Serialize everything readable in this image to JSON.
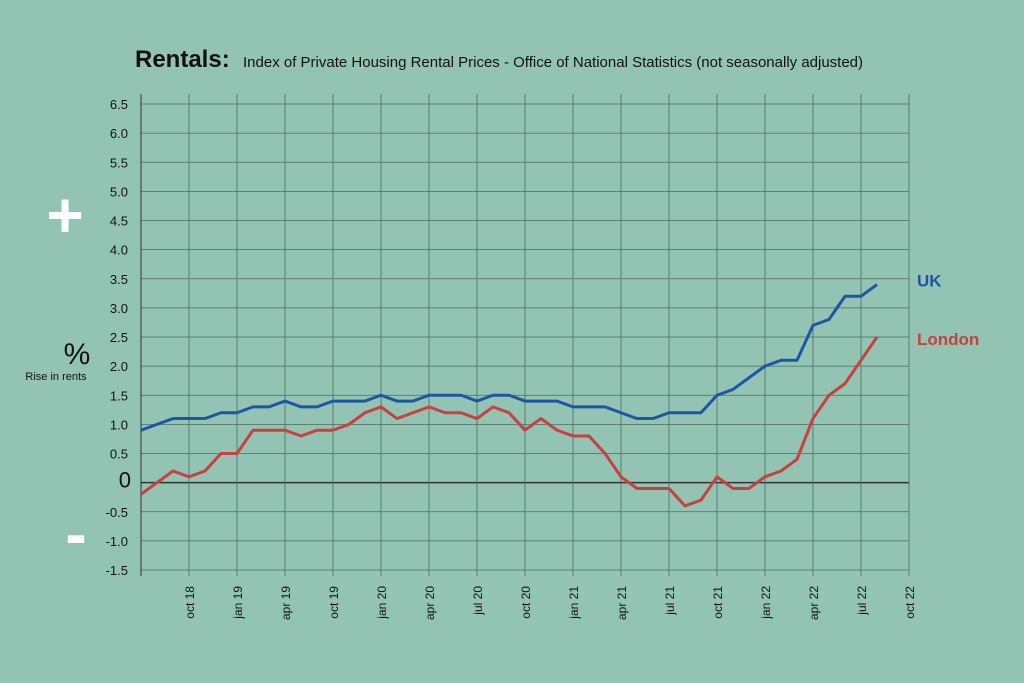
{
  "chart_data": {
    "type": "line",
    "title": "Rentals:",
    "subtitle": "Index of Private Housing Rental Prices - Office of National Statistics (not seasonally adjusted)",
    "y_label": "%",
    "y_sublabel": "Rise in rents",
    "plus_sign": "+",
    "minus_sign": "-",
    "x": [
      0,
      1,
      2,
      3,
      4,
      5,
      6,
      7,
      8,
      9,
      10,
      11,
      12,
      13,
      14,
      15,
      16,
      17,
      18,
      19,
      20,
      21,
      22,
      23,
      24,
      25,
      26,
      27,
      28,
      29,
      30,
      31,
      32,
      33,
      34,
      35,
      36,
      37,
      38,
      39,
      40,
      41,
      42,
      43,
      44,
      45,
      46
    ],
    "xlim": [
      0,
      48
    ],
    "xticks": [
      {
        "value": 3,
        "label": "oct 18"
      },
      {
        "value": 6,
        "label": "jan 19"
      },
      {
        "value": 9,
        "label": "apr 19"
      },
      {
        "value": 12,
        "label": "oct 19"
      },
      {
        "value": 15,
        "label": "jan 20"
      },
      {
        "value": 18,
        "label": "apr 20"
      },
      {
        "value": 21,
        "label": "jul 20"
      },
      {
        "value": 24,
        "label": "oct 20"
      },
      {
        "value": 27,
        "label": "jan 21"
      },
      {
        "value": 30,
        "label": "apr 21"
      },
      {
        "value": 33,
        "label": "jul 21"
      },
      {
        "value": 36,
        "label": "oct 21"
      },
      {
        "value": 39,
        "label": "jan 22"
      },
      {
        "value": 42,
        "label": "apr 22"
      },
      {
        "value": 45,
        "label": "jul 22"
      },
      {
        "value": 48,
        "label": "oct 22"
      }
    ],
    "ylim": [
      -1.5,
      6.5
    ],
    "yticks": [
      -1.5,
      -0.5,
      {
        "value": -1,
        "label": "-1.0"
      },
      0,
      0.5,
      {
        "value": 1,
        "label": "1.0"
      },
      1.5,
      {
        "value": 2,
        "label": "2.0"
      },
      2.5,
      {
        "value": 3,
        "label": "3.0"
      },
      3.5,
      {
        "value": 4,
        "label": "4.0"
      },
      4.5,
      {
        "value": 5,
        "label": "5.0"
      },
      5.5,
      {
        "value": 6,
        "label": "6.0"
      },
      6.5
    ],
    "grid": true,
    "series": [
      {
        "name": "UK",
        "color": "#1f56a3",
        "values": [
          0.9,
          1.0,
          1.1,
          1.1,
          1.1,
          1.2,
          1.2,
          1.3,
          1.3,
          1.4,
          1.3,
          1.3,
          1.4,
          1.4,
          1.4,
          1.5,
          1.4,
          1.4,
          1.5,
          1.5,
          1.5,
          1.4,
          1.5,
          1.5,
          1.4,
          1.4,
          1.4,
          1.3,
          1.3,
          1.3,
          1.2,
          1.1,
          1.1,
          1.2,
          1.2,
          1.2,
          1.5,
          1.6,
          1.8,
          2.0,
          2.1,
          2.1,
          2.7,
          2.8,
          3.2,
          3.2,
          3.4
        ]
      },
      {
        "name": "London",
        "color": "#c8403f",
        "values": [
          -0.2,
          0.0,
          0.2,
          0.1,
          0.2,
          0.5,
          0.5,
          0.9,
          0.9,
          0.9,
          0.8,
          0.9,
          0.9,
          1.0,
          1.2,
          1.3,
          1.1,
          1.2,
          1.3,
          1.2,
          1.2,
          1.1,
          1.3,
          1.2,
          0.9,
          1.1,
          0.9,
          0.8,
          0.8,
          0.5,
          0.1,
          -0.1,
          -0.1,
          -0.1,
          -0.4,
          -0.3,
          0.1,
          -0.1,
          -0.1,
          0.1,
          0.2,
          0.4,
          1.1,
          1.5,
          1.7,
          2.1,
          2.5
        ]
      }
    ]
  }
}
